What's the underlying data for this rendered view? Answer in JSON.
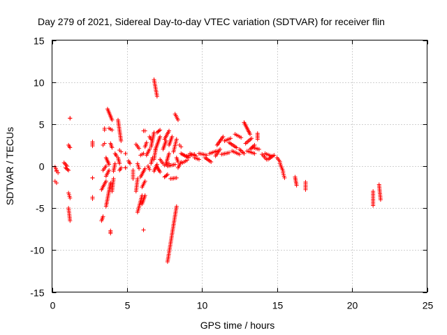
{
  "chart_data": {
    "type": "scatter",
    "title": "Day 279 of 2021, Sidereal Day-to-day VTEC variation (SDTVAR) for receiver flin",
    "xlabel": "GPS time / hours",
    "ylabel": "SDTVAR / TECUs",
    "xlim": [
      0,
      25
    ],
    "ylim": [
      -15,
      15
    ],
    "xticks": [
      0,
      5,
      10,
      15,
      20,
      25
    ],
    "yticks": [
      -15,
      -10,
      -5,
      0,
      5,
      10,
      15
    ],
    "grid": true,
    "marker": "plus",
    "series_color": "#ff0000",
    "segments": [
      [
        0.2,
        -0.1,
        0.3,
        -0.5
      ],
      [
        0.2,
        -1.8,
        0.3,
        -2.0
      ],
      [
        0.3,
        -0.6,
        0.4,
        -0.8
      ],
      [
        0.8,
        0.4,
        1.0,
        0.0
      ],
      [
        0.9,
        -0.2,
        1.1,
        -0.5
      ],
      [
        1.1,
        2.5,
        1.2,
        2.2
      ],
      [
        1.1,
        -3.2,
        1.2,
        -3.8
      ],
      [
        1.1,
        -5.0,
        1.2,
        -6.5
      ],
      [
        1.2,
        5.7,
        1.2,
        5.7
      ],
      [
        2.7,
        2.9,
        2.7,
        2.4
      ],
      [
        2.7,
        -1.4,
        2.7,
        -1.4
      ],
      [
        2.7,
        -3.7,
        2.7,
        -3.9
      ],
      [
        3.3,
        -6.5,
        3.4,
        -6.0
      ],
      [
        3.3,
        -2.8,
        3.6,
        -1.8
      ],
      [
        3.4,
        -0.5,
        3.6,
        0.0
      ],
      [
        3.4,
        2.5,
        3.5,
        2.7
      ],
      [
        3.5,
        4.5,
        3.5,
        4.3
      ],
      [
        3.6,
        1.0,
        3.8,
        0.2
      ],
      [
        3.6,
        -1.2,
        3.8,
        -0.5
      ],
      [
        3.6,
        -4.8,
        3.9,
        -2.0
      ],
      [
        3.7,
        6.8,
        4.0,
        5.5
      ],
      [
        3.8,
        4.5,
        4.0,
        4.3
      ],
      [
        3.9,
        -7.7,
        3.9,
        -8.0
      ],
      [
        3.9,
        2.7,
        4.0,
        2.2
      ],
      [
        4.0,
        -3.0,
        4.1,
        -1.5
      ],
      [
        4.1,
        -0.6,
        4.2,
        0.3
      ],
      [
        4.2,
        1.5,
        4.3,
        1.2
      ],
      [
        4.4,
        5.5,
        4.6,
        3.0
      ],
      [
        4.4,
        1.0,
        4.5,
        0.3
      ],
      [
        4.5,
        -0.5,
        4.6,
        -0.2
      ],
      [
        4.5,
        1.9,
        4.6,
        1.7
      ],
      [
        4.9,
        1.5,
        4.9,
        1.5
      ],
      [
        4.9,
        -0.2,
        4.9,
        -0.2
      ],
      [
        5.1,
        0.6,
        5.2,
        0.3
      ],
      [
        5.4,
        -0.5,
        5.4,
        -1.5
      ],
      [
        5.6,
        2.6,
        5.8,
        2.1
      ],
      [
        5.6,
        -3.0,
        5.7,
        -1.5
      ],
      [
        5.7,
        0.3,
        5.8,
        -0.3
      ],
      [
        5.7,
        -5.5,
        6.0,
        -3.5
      ],
      [
        5.9,
        -1.3,
        6.2,
        -0.3
      ],
      [
        5.9,
        1.3,
        6.1,
        1.5
      ],
      [
        6.0,
        -4.5,
        6.2,
        -3.5
      ],
      [
        6.0,
        -2.5,
        6.2,
        -1.8
      ],
      [
        6.1,
        -7.6,
        6.1,
        -7.6
      ],
      [
        6.1,
        4.2,
        6.2,
        4.2
      ],
      [
        6.2,
        2.3,
        6.3,
        2.8
      ],
      [
        6.3,
        1.3,
        6.5,
        2.0
      ],
      [
        6.4,
        0.0,
        6.5,
        -0.4
      ],
      [
        6.5,
        3.5,
        6.6,
        3.2
      ],
      [
        6.6,
        0.3,
        6.7,
        1.0
      ],
      [
        6.6,
        2.3,
        6.8,
        4.0
      ],
      [
        6.8,
        10.3,
        7.0,
        8.3
      ],
      [
        6.8,
        -0.6,
        7.0,
        0.2
      ],
      [
        6.8,
        0.8,
        6.9,
        1.9
      ],
      [
        6.9,
        2.0,
        7.2,
        3.5
      ],
      [
        7.0,
        4.0,
        7.2,
        4.3
      ],
      [
        7.0,
        -0.1,
        7.2,
        -0.7
      ],
      [
        7.2,
        0.8,
        7.4,
        0.3
      ],
      [
        7.4,
        2.0,
        7.6,
        3.0
      ],
      [
        7.5,
        0.1,
        7.8,
        0.3
      ],
      [
        7.5,
        -1.3,
        7.7,
        -1.0
      ],
      [
        7.5,
        3.2,
        7.8,
        4.2
      ],
      [
        7.6,
        0.3,
        7.8,
        1.5
      ],
      [
        7.7,
        -11.4,
        8.3,
        -4.8
      ],
      [
        7.7,
        0.0,
        8.2,
        0.2
      ],
      [
        7.8,
        2.5,
        8.0,
        3.5
      ],
      [
        7.9,
        -1.5,
        8.3,
        -1.4
      ],
      [
        8.1,
        1.7,
        8.3,
        3.2
      ],
      [
        8.2,
        6.2,
        8.4,
        5.5
      ],
      [
        8.3,
        1.0,
        8.4,
        0.5
      ],
      [
        8.4,
        -0.2,
        8.6,
        0.5
      ],
      [
        8.5,
        2.5,
        8.6,
        2.3
      ],
      [
        8.6,
        1.5,
        9.1,
        1.0
      ],
      [
        8.7,
        0.4,
        9.0,
        0.7
      ],
      [
        9.0,
        1.2,
        9.5,
        1.4
      ],
      [
        9.2,
        1.5,
        9.6,
        1.2
      ],
      [
        9.5,
        1.0,
        9.8,
        0.8
      ],
      [
        9.8,
        1.5,
        10.3,
        1.3
      ],
      [
        10.2,
        1.0,
        10.6,
        0.5
      ],
      [
        10.5,
        1.5,
        11.0,
        1.8
      ],
      [
        10.9,
        1.2,
        11.2,
        2.0
      ],
      [
        11.0,
        2.5,
        11.4,
        3.5
      ],
      [
        11.3,
        1.4,
        11.8,
        1.6
      ],
      [
        11.5,
        3.0,
        11.9,
        3.3
      ],
      [
        11.8,
        2.8,
        12.3,
        2.2
      ],
      [
        12.0,
        1.8,
        12.5,
        1.4
      ],
      [
        12.2,
        3.8,
        12.6,
        3.4
      ],
      [
        12.5,
        2.0,
        12.8,
        1.5
      ],
      [
        12.8,
        5.2,
        13.2,
        3.8
      ],
      [
        12.9,
        2.7,
        13.3,
        3.3
      ],
      [
        13.0,
        1.8,
        13.5,
        1.5
      ],
      [
        13.2,
        2.0,
        13.5,
        2.5
      ],
      [
        13.7,
        3.9,
        13.7,
        3.2
      ],
      [
        13.4,
        2.2,
        13.8,
        2.0
      ],
      [
        14.0,
        1.4,
        14.3,
        0.8
      ],
      [
        14.2,
        1.5,
        14.6,
        1.2
      ],
      [
        14.4,
        0.8,
        14.8,
        1.3
      ],
      [
        15.0,
        1.0,
        15.2,
        0.5
      ],
      [
        15.2,
        0.3,
        15.4,
        -0.6
      ],
      [
        15.4,
        -0.8,
        15.5,
        -1.4
      ],
      [
        16.2,
        -1.3,
        16.3,
        -2.3
      ],
      [
        16.9,
        -1.9,
        16.9,
        -2.8
      ],
      [
        21.4,
        -3.0,
        21.4,
        -4.7
      ],
      [
        21.8,
        -2.2,
        21.9,
        -4.0
      ]
    ]
  }
}
